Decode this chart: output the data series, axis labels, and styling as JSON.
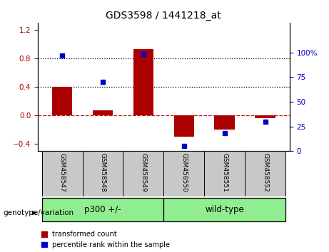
{
  "title": "GDS3598 / 1441218_at",
  "categories": [
    "GSM458547",
    "GSM458548",
    "GSM458549",
    "GSM458550",
    "GSM458551",
    "GSM458552"
  ],
  "red_values": [
    0.4,
    0.07,
    0.93,
    -0.3,
    -0.2,
    -0.04
  ],
  "blue_values_pct": [
    97,
    70,
    98,
    5,
    18,
    30
  ],
  "group_label": "genotype/variation",
  "group_ranges": [
    [
      0,
      2,
      "p300 +/-"
    ],
    [
      3,
      5,
      "wild-type"
    ]
  ],
  "ylim_left": [
    -0.5,
    1.3
  ],
  "ylim_right": [
    0,
    130
  ],
  "yticks_left": [
    -0.4,
    0.0,
    0.4,
    0.8,
    1.2
  ],
  "yticks_right": [
    0,
    25,
    50,
    75,
    100
  ],
  "ytick_labels_right": [
    "0",
    "25",
    "50",
    "75",
    "100%"
  ],
  "hlines": [
    0.4,
    0.8
  ],
  "red_color": "#AA0000",
  "blue_color": "#0000CC",
  "zero_line_color": "#CC0000",
  "bar_width": 0.5,
  "green_color": "#90EE90",
  "gray_color": "#C8C8C8",
  "legend_labels": [
    "transformed count",
    "percentile rank within the sample"
  ],
  "title_fontsize": 10
}
